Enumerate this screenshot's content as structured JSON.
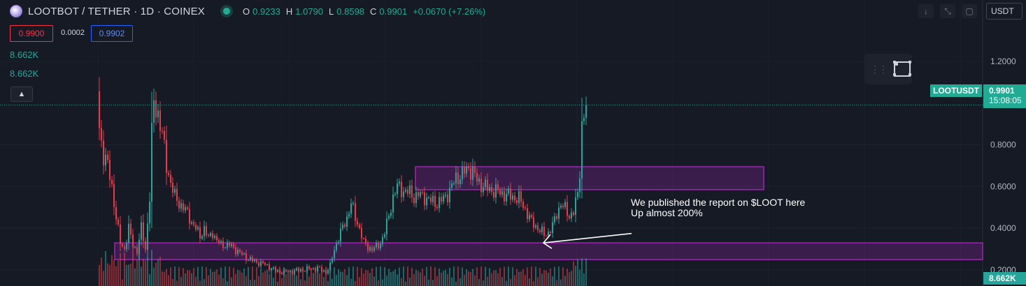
{
  "header": {
    "symbol_title": "LOOTBOT / TETHER · 1D · COINEX",
    "open_label": "O",
    "open": "0.9233",
    "high_label": "H",
    "high": "1.0790",
    "low_label": "L",
    "low": "0.8598",
    "close_label": "C",
    "close": "0.9901",
    "change": "+0.0670 (+7.26%)"
  },
  "trade": {
    "bid": "0.9900",
    "spread": "0.0002",
    "ask": "0.9902"
  },
  "volume_legend": [
    "8.662K",
    "8.662K"
  ],
  "toolbar": {
    "currency": "USDT",
    "icons": [
      "arrow-down-icon",
      "collapse-icon",
      "restore-icon"
    ]
  },
  "price_label": {
    "name": "LOOTUSDT",
    "price": "0.9901",
    "countdown": "15:08:05"
  },
  "volume_label": "8.662K",
  "annotation": {
    "line1": "We published the report on $LOOT here",
    "line2": "Up almost 200%"
  },
  "chart_data": {
    "type": "candlestick",
    "y_ticks": [
      "1.2000",
      "0.8000",
      "0.6000",
      "0.4000",
      "0.2000"
    ],
    "ylim": [
      0.13,
      1.38
    ],
    "last_price": 0.9901,
    "colors": {
      "up": "#26a69a",
      "down": "#f23645",
      "zone": "#9c27b0"
    },
    "zones": [
      {
        "from_bar": 151,
        "to_bar": 317,
        "low": 0.585,
        "high": 0.695
      },
      {
        "from_bar": 0,
        "to_bar": 431,
        "low": 0.25,
        "high": 0.33
      }
    ],
    "annotation_arrow": {
      "from_bar": 254,
      "from_price": 0.375,
      "to_bar": 212,
      "to_price": 0.33
    },
    "path_points": [
      [
        0,
        0.88
      ],
      [
        2,
        0.75
      ],
      [
        4,
        0.7
      ],
      [
        6,
        0.6
      ],
      [
        8,
        0.45
      ],
      [
        10,
        0.33
      ],
      [
        12,
        0.3
      ],
      [
        14,
        0.4
      ],
      [
        16,
        0.32
      ],
      [
        18,
        0.29
      ],
      [
        20,
        0.4
      ],
      [
        22,
        0.3
      ],
      [
        24,
        0.55
      ],
      [
        25,
        0.85
      ],
      [
        26,
        1.0
      ],
      [
        28,
        0.95
      ],
      [
        30,
        0.85
      ],
      [
        32,
        0.7
      ],
      [
        34,
        0.62
      ],
      [
        36,
        0.55
      ],
      [
        38,
        0.52
      ],
      [
        40,
        0.5
      ],
      [
        42,
        0.47
      ],
      [
        44,
        0.43
      ],
      [
        46,
        0.4
      ],
      [
        48,
        0.36
      ],
      [
        50,
        0.4
      ],
      [
        52,
        0.35
      ],
      [
        54,
        0.38
      ],
      [
        56,
        0.34
      ],
      [
        58,
        0.32
      ],
      [
        62,
        0.32
      ],
      [
        66,
        0.29
      ],
      [
        70,
        0.26
      ],
      [
        74,
        0.24
      ],
      [
        78,
        0.23
      ],
      [
        80,
        0.22
      ],
      [
        84,
        0.195
      ],
      [
        88,
        0.19
      ],
      [
        92,
        0.195
      ],
      [
        96,
        0.2
      ],
      [
        100,
        0.205
      ],
      [
        104,
        0.21
      ],
      [
        108,
        0.19
      ],
      [
        110,
        0.22
      ],
      [
        112,
        0.3
      ],
      [
        115,
        0.38
      ],
      [
        118,
        0.45
      ],
      [
        120,
        0.52
      ],
      [
        122,
        0.45
      ],
      [
        124,
        0.4
      ],
      [
        126,
        0.33
      ],
      [
        128,
        0.31
      ],
      [
        130,
        0.3
      ],
      [
        132,
        0.31
      ],
      [
        134,
        0.33
      ],
      [
        136,
        0.38
      ],
      [
        138,
        0.46
      ],
      [
        140,
        0.55
      ],
      [
        142,
        0.6
      ],
      [
        145,
        0.58
      ],
      [
        148,
        0.57
      ],
      [
        150,
        0.55
      ],
      [
        152,
        0.56
      ],
      [
        155,
        0.55
      ],
      [
        158,
        0.53
      ],
      [
        161,
        0.52
      ],
      [
        164,
        0.54
      ],
      [
        167,
        0.58
      ],
      [
        170,
        0.64
      ],
      [
        173,
        0.66
      ],
      [
        176,
        0.69
      ],
      [
        178,
        0.67
      ],
      [
        180,
        0.63
      ],
      [
        182,
        0.61
      ],
      [
        185,
        0.59
      ],
      [
        188,
        0.58
      ],
      [
        191,
        0.57
      ],
      [
        194,
        0.56
      ],
      [
        197,
        0.55
      ],
      [
        200,
        0.54
      ],
      [
        202,
        0.51
      ],
      [
        204,
        0.47
      ],
      [
        206,
        0.43
      ],
      [
        208,
        0.41
      ],
      [
        210,
        0.39
      ],
      [
        212,
        0.37
      ],
      [
        214,
        0.38
      ],
      [
        216,
        0.41
      ],
      [
        218,
        0.47
      ],
      [
        220,
        0.52
      ],
      [
        222,
        0.49
      ],
      [
        224,
        0.46
      ],
      [
        226,
        0.48
      ],
      [
        228,
        0.56
      ],
      [
        229,
        0.68
      ],
      [
        230,
        0.9
      ],
      [
        232,
        0.99
      ]
    ]
  }
}
